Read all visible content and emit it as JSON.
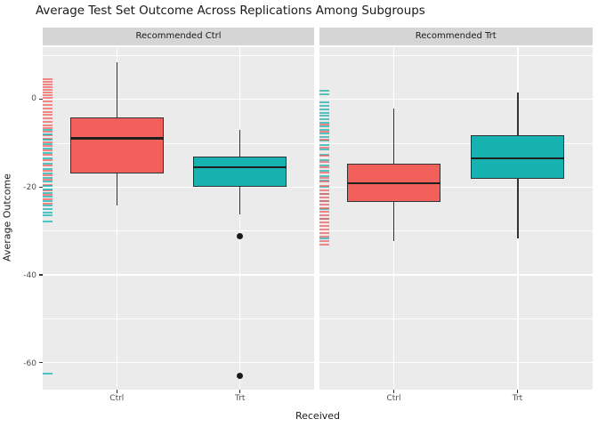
{
  "title": "Average Test Set Outcome Across Replications Among Subgroups",
  "colors": {
    "ctrl": "#F2605C",
    "trt": "#18B3B1",
    "panel_bg": "#EBEBEB",
    "strip_bg": "#D5D5D5",
    "gridline": "#FFFFFF",
    "box_border": "#333333",
    "median": "#1F1F1F",
    "outlier": "#1A1A1A",
    "tick_label": "#4D4D4D"
  },
  "axes": {
    "y_label": "Average Outcome",
    "x_label": "Received",
    "y_tick_labels": [
      "0",
      "-20",
      "-40",
      "-60"
    ],
    "y_ticks": [
      0,
      -20,
      -40,
      -60
    ],
    "y_minor_ticks": [
      10,
      -10,
      -30,
      -50
    ],
    "x_categories": [
      "Ctrl",
      "Trt"
    ]
  },
  "chart_data": {
    "type": "boxplot",
    "title": "Average Test Set Outcome Across Replications Among Subgroups",
    "xlabel": "Received",
    "ylabel": "Average Outcome",
    "y_axis": {
      "top_value": 11.9,
      "bottom_value": -66.2,
      "major_breaks": [
        0,
        -20,
        -40,
        -60
      ],
      "minor_breaks": [
        10,
        -10,
        -30,
        -50
      ],
      "grid": "on"
    },
    "categories": [
      "Ctrl",
      "Trt"
    ],
    "facets": [
      {
        "label": "Recommended Ctrl",
        "groups": [
          {
            "name": "Ctrl",
            "color_key": "ctrl",
            "whisker_high": 8.5,
            "q3": -4.1,
            "median": -8.9,
            "q1": -16.9,
            "whisker_low": -24.1,
            "outliers": []
          },
          {
            "name": "Trt",
            "color_key": "trt",
            "whisker_high": -7.0,
            "q3": -13.0,
            "median": -15.5,
            "q1": -20.0,
            "whisker_low": -26.3,
            "outliers": [
              -31.2,
              -62.9
            ]
          }
        ],
        "rug": [
          [
            4.6,
            "ctrl"
          ],
          [
            4.0,
            "ctrl"
          ],
          [
            3.4,
            "ctrl"
          ],
          [
            2.8,
            "ctrl"
          ],
          [
            2.2,
            "ctrl"
          ],
          [
            1.6,
            "ctrl"
          ],
          [
            1.0,
            "ctrl"
          ],
          [
            0.4,
            "ctrl"
          ],
          [
            -0.4,
            "ctrl"
          ],
          [
            -1.2,
            "ctrl"
          ],
          [
            -2.0,
            "ctrl"
          ],
          [
            -2.8,
            "ctrl"
          ],
          [
            -3.6,
            "ctrl"
          ],
          [
            -4.4,
            "ctrl"
          ],
          [
            -5.2,
            "ctrl"
          ],
          [
            -6.0,
            "ctrl"
          ],
          [
            -6.6,
            "ctrl"
          ],
          [
            -7.4,
            "ctrl"
          ],
          [
            -8.2,
            "ctrl"
          ],
          [
            -9.0,
            "ctrl"
          ],
          [
            -9.8,
            "ctrl"
          ],
          [
            -10.6,
            "ctrl"
          ],
          [
            -11.6,
            "ctrl"
          ],
          [
            -12.6,
            "ctrl"
          ],
          [
            -13.8,
            "ctrl"
          ],
          [
            -15.0,
            "ctrl"
          ],
          [
            -16.2,
            "ctrl"
          ],
          [
            -17.2,
            "ctrl"
          ],
          [
            -18.4,
            "ctrl"
          ],
          [
            -19.6,
            "ctrl"
          ],
          [
            -20.8,
            "ctrl"
          ],
          [
            -21.8,
            "ctrl"
          ],
          [
            -22.8,
            "ctrl"
          ],
          [
            -23.8,
            "ctrl"
          ],
          [
            -7.0,
            "trt"
          ],
          [
            -8.0,
            "trt"
          ],
          [
            -9.2,
            "trt"
          ],
          [
            -10.2,
            "trt"
          ],
          [
            -11.2,
            "trt"
          ],
          [
            -12.2,
            "trt"
          ],
          [
            -13.4,
            "trt"
          ],
          [
            -14.6,
            "trt"
          ],
          [
            -15.8,
            "trt"
          ],
          [
            -16.8,
            "trt"
          ],
          [
            -17.8,
            "trt"
          ],
          [
            -18.8,
            "trt"
          ],
          [
            -19.8,
            "trt"
          ],
          [
            -20.6,
            "trt"
          ],
          [
            -21.4,
            "trt"
          ],
          [
            -22.2,
            "trt"
          ],
          [
            -23.2,
            "trt"
          ],
          [
            -24.2,
            "trt"
          ],
          [
            -25.0,
            "trt"
          ],
          [
            -25.8,
            "trt"
          ],
          [
            -26.4,
            "trt"
          ],
          [
            -27.9,
            "trt"
          ],
          [
            -62.4,
            "trt"
          ]
        ]
      },
      {
        "label": "Recommended Trt",
        "groups": [
          {
            "name": "Ctrl",
            "color_key": "ctrl",
            "whisker_high": -2.0,
            "q3": -14.7,
            "median": -19.1,
            "q1": -23.3,
            "whisker_low": -32.2,
            "outliers": []
          },
          {
            "name": "Trt",
            "color_key": "trt",
            "whisker_high": 1.6,
            "q3": -8.1,
            "median": -13.4,
            "q1": -18.2,
            "whisker_low": -31.7,
            "outliers": []
          }
        ],
        "rug": [
          [
            2.0,
            "trt"
          ],
          [
            1.2,
            "trt"
          ],
          [
            -0.6,
            "trt"
          ],
          [
            -1.4,
            "trt"
          ],
          [
            -2.2,
            "trt"
          ],
          [
            -3.0,
            "trt"
          ],
          [
            -3.8,
            "trt"
          ],
          [
            -4.6,
            "trt"
          ],
          [
            -5.4,
            "trt"
          ],
          [
            -6.2,
            "trt"
          ],
          [
            -7.0,
            "trt"
          ],
          [
            -7.8,
            "trt"
          ],
          [
            -8.6,
            "trt"
          ],
          [
            -9.4,
            "trt"
          ],
          [
            -10.4,
            "trt"
          ],
          [
            -11.4,
            "trt"
          ],
          [
            -12.6,
            "trt"
          ],
          [
            -13.8,
            "trt"
          ],
          [
            -15.0,
            "trt"
          ],
          [
            -16.2,
            "trt"
          ],
          [
            -17.4,
            "trt"
          ],
          [
            -18.6,
            "trt"
          ],
          [
            -20.0,
            "trt"
          ],
          [
            -21.6,
            "trt"
          ],
          [
            -23.2,
            "trt"
          ],
          [
            -25.0,
            "trt"
          ],
          [
            -27.2,
            "trt"
          ],
          [
            -31.6,
            "trt"
          ],
          [
            -5.8,
            "ctrl"
          ],
          [
            -7.4,
            "ctrl"
          ],
          [
            -9.2,
            "ctrl"
          ],
          [
            -11.0,
            "ctrl"
          ],
          [
            -12.8,
            "ctrl"
          ],
          [
            -14.2,
            "ctrl"
          ],
          [
            -15.4,
            "ctrl"
          ],
          [
            -16.6,
            "ctrl"
          ],
          [
            -17.8,
            "ctrl"
          ],
          [
            -18.8,
            "ctrl"
          ],
          [
            -19.8,
            "ctrl"
          ],
          [
            -20.8,
            "ctrl"
          ],
          [
            -21.6,
            "ctrl"
          ],
          [
            -22.4,
            "ctrl"
          ],
          [
            -23.2,
            "ctrl"
          ],
          [
            -24.0,
            "ctrl"
          ],
          [
            -24.8,
            "ctrl"
          ],
          [
            -25.6,
            "ctrl"
          ],
          [
            -26.4,
            "ctrl"
          ],
          [
            -27.2,
            "ctrl"
          ],
          [
            -28.0,
            "ctrl"
          ],
          [
            -28.8,
            "ctrl"
          ],
          [
            -29.6,
            "ctrl"
          ],
          [
            -30.4,
            "ctrl"
          ],
          [
            -31.2,
            "ctrl"
          ],
          [
            -32.2,
            "ctrl"
          ],
          [
            -33.2,
            "ctrl"
          ]
        ]
      }
    ]
  }
}
